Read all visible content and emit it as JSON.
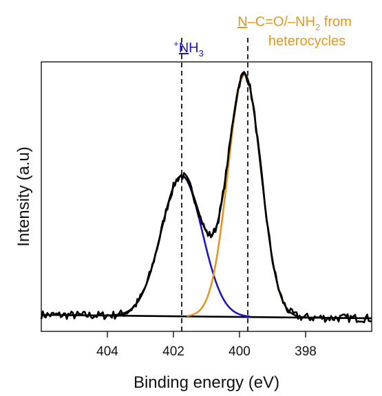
{
  "chart_data": {
    "type": "line",
    "xlabel": "Binding energy (eV)",
    "ylabel": "Intensity (a.u)",
    "xlim": [
      406.0,
      396.0
    ],
    "x_reversed": true,
    "ylim": [
      0,
      1.08
    ],
    "xticks": [
      404,
      402,
      400,
      398
    ],
    "grid": false,
    "legend": "none",
    "baseline": {
      "left": 0.025,
      "right": 0.0
    },
    "peaks": [
      {
        "label_sup": "+",
        "label_main": "NH",
        "label_sub": "3",
        "label_underline": "N",
        "color": "#1c16c0",
        "center": 401.75,
        "height": 0.58,
        "sigma": 0.62,
        "marker": 401.75
      },
      {
        "label_line1_parts": [
          "N",
          "–C=O/–NH",
          "2",
          " from"
        ],
        "label_line2": "heterocycles",
        "color": "#e69520",
        "center": 399.85,
        "height": 1.0,
        "sigma": 0.5,
        "marker": 399.75
      }
    ],
    "series": [
      {
        "role": "measured",
        "color": "#000000"
      },
      {
        "role": "envelope",
        "color": "#000000"
      }
    ]
  }
}
